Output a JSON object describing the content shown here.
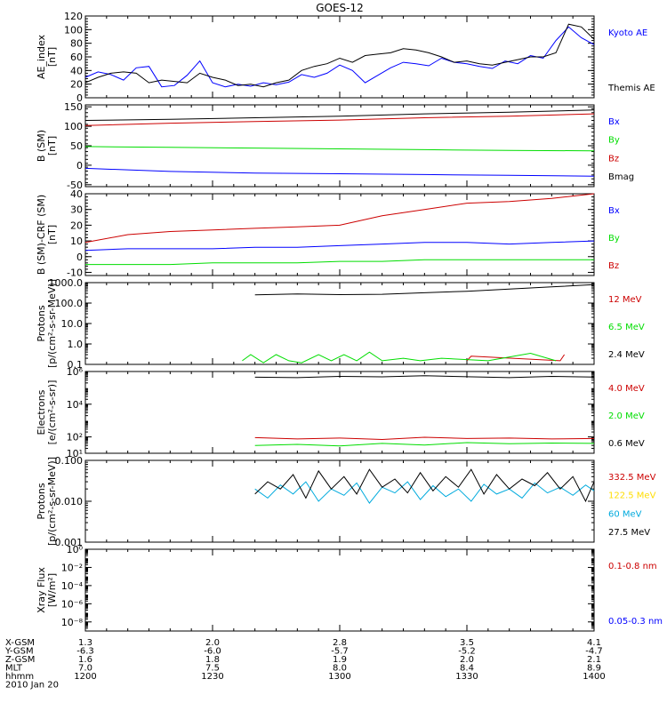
{
  "chart_data": {
    "type": "line",
    "title": "GOES-12",
    "panels": [
      {
        "id": "ae",
        "ylabel": [
          "AE_index",
          "[nT]"
        ],
        "yscale": "linear",
        "ylim": [
          0,
          120
        ],
        "yticks": [
          0,
          20,
          40,
          60,
          80,
          100,
          120
        ],
        "ytick_labels": [
          "0",
          "20",
          "40",
          "60",
          "80",
          "100",
          "120"
        ],
        "series": [
          {
            "name": "Kyoto AE",
            "color": "#0000ff",
            "x": [
              0,
              3,
              6,
              9,
              12,
              15,
              18,
              21,
              24,
              27,
              30,
              33,
              36,
              39,
              42,
              45,
              48,
              51,
              54,
              57,
              60,
              63,
              66,
              69,
              72,
              75,
              78,
              81,
              84,
              87,
              90,
              93,
              96,
              99,
              102,
              105,
              108,
              111,
              114,
              117,
              120
            ],
            "y": [
              30,
              38,
              34,
              26,
              44,
              46,
              16,
              18,
              33,
              54,
              22,
              16,
              20,
              17,
              22,
              19,
              23,
              34,
              30,
              36,
              48,
              40,
              22,
              33,
              44,
              52,
              50,
              47,
              58,
              52,
              50,
              46,
              43,
              54,
              50,
              62,
              58,
              84,
              104,
              88,
              78
            ]
          },
          {
            "name": "Themis AE",
            "color": "#000000",
            "x": [
              0,
              3,
              6,
              9,
              12,
              15,
              18,
              21,
              24,
              27,
              30,
              33,
              36,
              39,
              42,
              45,
              48,
              51,
              54,
              57,
              60,
              63,
              66,
              69,
              72,
              75,
              78,
              81,
              84,
              87,
              90,
              93,
              96,
              99,
              102,
              105,
              108,
              111,
              114,
              117,
              120
            ],
            "y": [
              22,
              30,
              36,
              38,
              36,
              22,
              26,
              24,
              22,
              36,
              30,
              26,
              18,
              20,
              16,
              22,
              26,
              40,
              46,
              50,
              58,
              52,
              62,
              64,
              66,
              72,
              70,
              66,
              60,
              52,
              54,
              50,
              48,
              52,
              56,
              60,
              60,
              66,
              108,
              104,
              86
            ]
          }
        ]
      },
      {
        "id": "bsm",
        "ylabel": [
          "B (SM)",
          "[nT]"
        ],
        "yscale": "linear",
        "ylim": [
          -55,
          155
        ],
        "yticks": [
          -50,
          0,
          50,
          100,
          150
        ],
        "ytick_labels": [
          "-50",
          "0",
          "50",
          "100",
          "150"
        ],
        "series": [
          {
            "name": "Bx",
            "color": "#0000ff",
            "x": [
              0,
              20,
              40,
              60,
              80,
              100,
              120
            ],
            "y": [
              -8,
              -16,
              -20,
              -22,
              -24,
              -26,
              -28
            ]
          },
          {
            "name": "By",
            "color": "#00dd00",
            "x": [
              0,
              20,
              40,
              60,
              80,
              100,
              120
            ],
            "y": [
              48,
              46,
              44,
              42,
              40,
              38,
              37
            ]
          },
          {
            "name": "Bz",
            "color": "#cc0000",
            "x": [
              0,
              20,
              40,
              60,
              80,
              100,
              120
            ],
            "y": [
              102,
              108,
              112,
              116,
              122,
              126,
              132
            ]
          },
          {
            "name": "Bmag",
            "color": "#000000",
            "x": [
              0,
              20,
              40,
              60,
              80,
              100,
              120
            ],
            "y": [
              115,
              118,
              122,
              126,
              132,
              136,
              142
            ]
          }
        ]
      },
      {
        "id": "bcrf",
        "ylabel": [
          "B (SM)-CRF (SM)",
          "[nT]"
        ],
        "yscale": "linear",
        "ylim": [
          -12,
          40
        ],
        "yticks": [
          -10,
          0,
          10,
          20,
          30,
          40
        ],
        "ytick_labels": [
          "-10",
          "0",
          "10",
          "20",
          "30",
          "40"
        ],
        "series": [
          {
            "name": "Bx",
            "color": "#0000ff",
            "x": [
              0,
              10,
              20,
              30,
              40,
              50,
              60,
              70,
              80,
              90,
              100,
              110,
              120
            ],
            "y": [
              4,
              5,
              5,
              5,
              6,
              6,
              7,
              8,
              9,
              9,
              8,
              9,
              10
            ]
          },
          {
            "name": "By",
            "color": "#00dd00",
            "x": [
              0,
              10,
              20,
              30,
              40,
              50,
              60,
              70,
              80,
              90,
              100,
              110,
              120
            ],
            "y": [
              -5,
              -5,
              -5,
              -4,
              -4,
              -4,
              -3,
              -3,
              -2,
              -2,
              -2,
              -2,
              -2
            ]
          },
          {
            "name": "Bz",
            "color": "#cc0000",
            "x": [
              0,
              10,
              20,
              30,
              40,
              50,
              60,
              70,
              80,
              90,
              100,
              110,
              120
            ],
            "y": [
              9,
              14,
              16,
              17,
              18,
              19,
              20,
              26,
              30,
              34,
              35,
              37,
              40
            ]
          }
        ]
      },
      {
        "id": "protons1",
        "ylabel": [
          "Protons",
          "[p/(cm²-s-sr-MeV)]"
        ],
        "yscale": "log",
        "ylim": [
          0.1,
          1000
        ],
        "yticks": [
          0.1,
          1,
          10,
          100,
          1000
        ],
        "ytick_labels": [
          "0.1",
          "1.0",
          "10.0",
          "100.0",
          "1000.0"
        ],
        "series": [
          {
            "name": "12 MeV",
            "color": "#cc0000",
            "x": [
              90,
              91,
              112,
              113
            ],
            "y": [
              0.15,
              0.25,
              0.15,
              0.3
            ]
          },
          {
            "name": "6.5 MeV",
            "color": "#00dd00",
            "x": [
              37,
              39,
              42,
              45,
              48,
              51,
              55,
              58,
              61,
              64,
              67,
              70,
              75,
              79,
              84,
              95,
              105,
              111
            ],
            "y": [
              0.15,
              0.3,
              0.12,
              0.3,
              0.15,
              0.12,
              0.3,
              0.15,
              0.3,
              0.15,
              0.4,
              0.15,
              0.2,
              0.15,
              0.2,
              0.15,
              0.35,
              0.15
            ]
          },
          {
            "name": "2.4 MeV",
            "color": "#000000",
            "x": [
              40,
              50,
              60,
              70,
              80,
              90,
              100,
              110,
              120
            ],
            "y": [
              250,
              280,
              260,
              270,
              320,
              380,
              480,
              620,
              800
            ]
          }
        ]
      },
      {
        "id": "electrons",
        "ylabel": [
          "Electrons",
          "[e/(cm²-s-sr)]"
        ],
        "yscale": "log",
        "ylim": [
          10,
          1000000
        ],
        "yticks": [
          10,
          100,
          10000,
          1000000
        ],
        "ytick_labels": [
          "10¹",
          "10²",
          "10⁴",
          "10⁶"
        ],
        "series": [
          {
            "name": "4.0 MeV",
            "color": "#cc0000",
            "x": [
              40,
              50,
              60,
              70,
              80,
              90,
              100,
              110,
              120
            ],
            "y": [
              90,
              75,
              85,
              70,
              95,
              80,
              85,
              75,
              80
            ]
          },
          {
            "name": "2.0 MeV",
            "color": "#00dd00",
            "x": [
              40,
              50,
              60,
              70,
              80,
              90,
              100,
              110,
              120
            ],
            "y": [
              30,
              35,
              28,
              40,
              32,
              45,
              38,
              42,
              40
            ]
          },
          {
            "name": "0.6 MeV",
            "color": "#000000",
            "x": [
              40,
              50,
              60,
              70,
              80,
              90,
              100,
              110,
              120
            ],
            "y": [
              450000,
              420000,
              500000,
              470000,
              550000,
              480000,
              420000,
              500000,
              460000
            ]
          }
        ]
      },
      {
        "id": "protons2",
        "ylabel": [
          "Protons",
          "[p/(cm²-s-sr-MeV)]"
        ],
        "yscale": "log",
        "ylim": [
          0.001,
          0.1
        ],
        "yticks": [
          0.001,
          0.01,
          0.1
        ],
        "ytick_labels": [
          "0.001",
          "0.010",
          "0.100"
        ],
        "series": [
          {
            "name": "332.5 MeV",
            "color": "#cc0000",
            "x": [],
            "y": []
          },
          {
            "name": "122.5 MeV",
            "color": "#ffdd00",
            "x": [],
            "y": []
          },
          {
            "name": "60 MeV",
            "color": "#00aadd",
            "x": [
              40,
              43,
              46,
              49,
              52,
              55,
              58,
              61,
              64,
              67,
              70,
              73,
              76,
              79,
              82,
              85,
              88,
              91,
              94,
              97,
              100,
              103,
              106,
              109,
              112,
              115,
              118,
              120
            ],
            "y": [
              0.02,
              0.012,
              0.025,
              0.015,
              0.03,
              0.01,
              0.02,
              0.014,
              0.028,
              0.009,
              0.022,
              0.016,
              0.03,
              0.011,
              0.024,
              0.013,
              0.02,
              0.01,
              0.026,
              0.015,
              0.02,
              0.012,
              0.028,
              0.016,
              0.022,
              0.014,
              0.025,
              0.018
            ]
          },
          {
            "name": "27.5 MeV",
            "color": "#000000",
            "x": [
              40,
              43,
              46,
              49,
              52,
              55,
              58,
              61,
              64,
              67,
              70,
              73,
              76,
              79,
              82,
              85,
              88,
              91,
              94,
              97,
              100,
              103,
              106,
              109,
              112,
              115,
              118,
              120
            ],
            "y": [
              0.015,
              0.03,
              0.02,
              0.045,
              0.012,
              0.055,
              0.02,
              0.04,
              0.015,
              0.06,
              0.022,
              0.035,
              0.016,
              0.05,
              0.018,
              0.04,
              0.022,
              0.06,
              0.015,
              0.045,
              0.02,
              0.035,
              0.024,
              0.05,
              0.02,
              0.04,
              0.01,
              0.03
            ]
          }
        ]
      },
      {
        "id": "xray",
        "ylabel": [
          "Xray  Flux",
          "[W/m²]"
        ],
        "yscale": "log",
        "ylim": [
          1e-09,
          1
        ],
        "yticks": [
          1e-08,
          1e-06,
          0.0001,
          0.01,
          1
        ],
        "ytick_labels": [
          "10⁻⁸",
          "10⁻⁶",
          "10⁻⁴",
          "10⁻²",
          "10⁰"
        ],
        "series": [
          {
            "name": "0.1-0.8 nm",
            "color": "#cc0000",
            "x": [],
            "y": []
          },
          {
            "name": "0.05-0.3 nm",
            "color": "#0000ff",
            "x": [],
            "y": []
          }
        ]
      }
    ],
    "xaxis": {
      "range_minutes": [
        0,
        120
      ],
      "tick_minutes": [
        0,
        30,
        60,
        90,
        120
      ],
      "rows": [
        {
          "label": "X-GSM",
          "values": [
            "1.3",
            "2.0",
            "2.8",
            "3.5",
            "4.1"
          ]
        },
        {
          "label": "Y-GSM",
          "values": [
            "-6.3",
            "-6.0",
            "-5.7",
            "-5.2",
            "-4.7"
          ]
        },
        {
          "label": "Z-GSM",
          "values": [
            "1.6",
            "1.8",
            "1.9",
            "2.0",
            "2.1"
          ]
        },
        {
          "label": "MLT",
          "values": [
            "7.0",
            "7.5",
            "8.0",
            "8.4",
            "8.9"
          ]
        },
        {
          "label": "hhmm",
          "values": [
            "1200",
            "1230",
            "1300",
            "1330",
            "1400"
          ]
        }
      ],
      "date": "2010 Jan 20"
    }
  }
}
